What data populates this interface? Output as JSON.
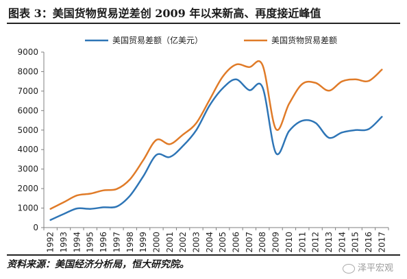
{
  "header": {
    "title": "图表 3：美国货物贸易逆差创 2009 年以来新高、再度接近峰值"
  },
  "footer": {
    "source": "资料来源：美国经济分析局，恒大研究院。",
    "watermark": "泽平宏观"
  },
  "chart_data": {
    "type": "line",
    "title": "",
    "xlabel": "",
    "ylabel": "",
    "ylim": [
      0,
      9000
    ],
    "yticks": [
      0,
      1000,
      2000,
      3000,
      4000,
      5000,
      6000,
      7000,
      8000,
      9000
    ],
    "grid": false,
    "legend_position": "top",
    "categories": [
      "1992",
      "1993",
      "1994",
      "1995",
      "1996",
      "1997",
      "1998",
      "1999",
      "2000",
      "2001",
      "2002",
      "2003",
      "2004",
      "2005",
      "2006",
      "2007",
      "2008",
      "2009",
      "2010",
      "2011",
      "2012",
      "2013",
      "2014",
      "2015",
      "2016",
      "2017"
    ],
    "series": [
      {
        "name": "美国贸易差额（亿美元）",
        "color": "#2e75b6",
        "values": [
          390,
          700,
          980,
          960,
          1040,
          1080,
          1640,
          2630,
          3730,
          3620,
          4190,
          5000,
          6260,
          7150,
          7600,
          7050,
          7190,
          3830,
          4950,
          5480,
          5370,
          4610,
          4880,
          5000,
          5050,
          5680
        ]
      },
      {
        "name": "美国货物贸易差额",
        "color": "#e07b28",
        "values": [
          960,
          1300,
          1650,
          1740,
          1910,
          1980,
          2480,
          3460,
          4500,
          4280,
          4770,
          5360,
          6550,
          7750,
          8360,
          8230,
          8330,
          5060,
          6350,
          7370,
          7420,
          7020,
          7500,
          7600,
          7520,
          8100
        ]
      }
    ]
  }
}
